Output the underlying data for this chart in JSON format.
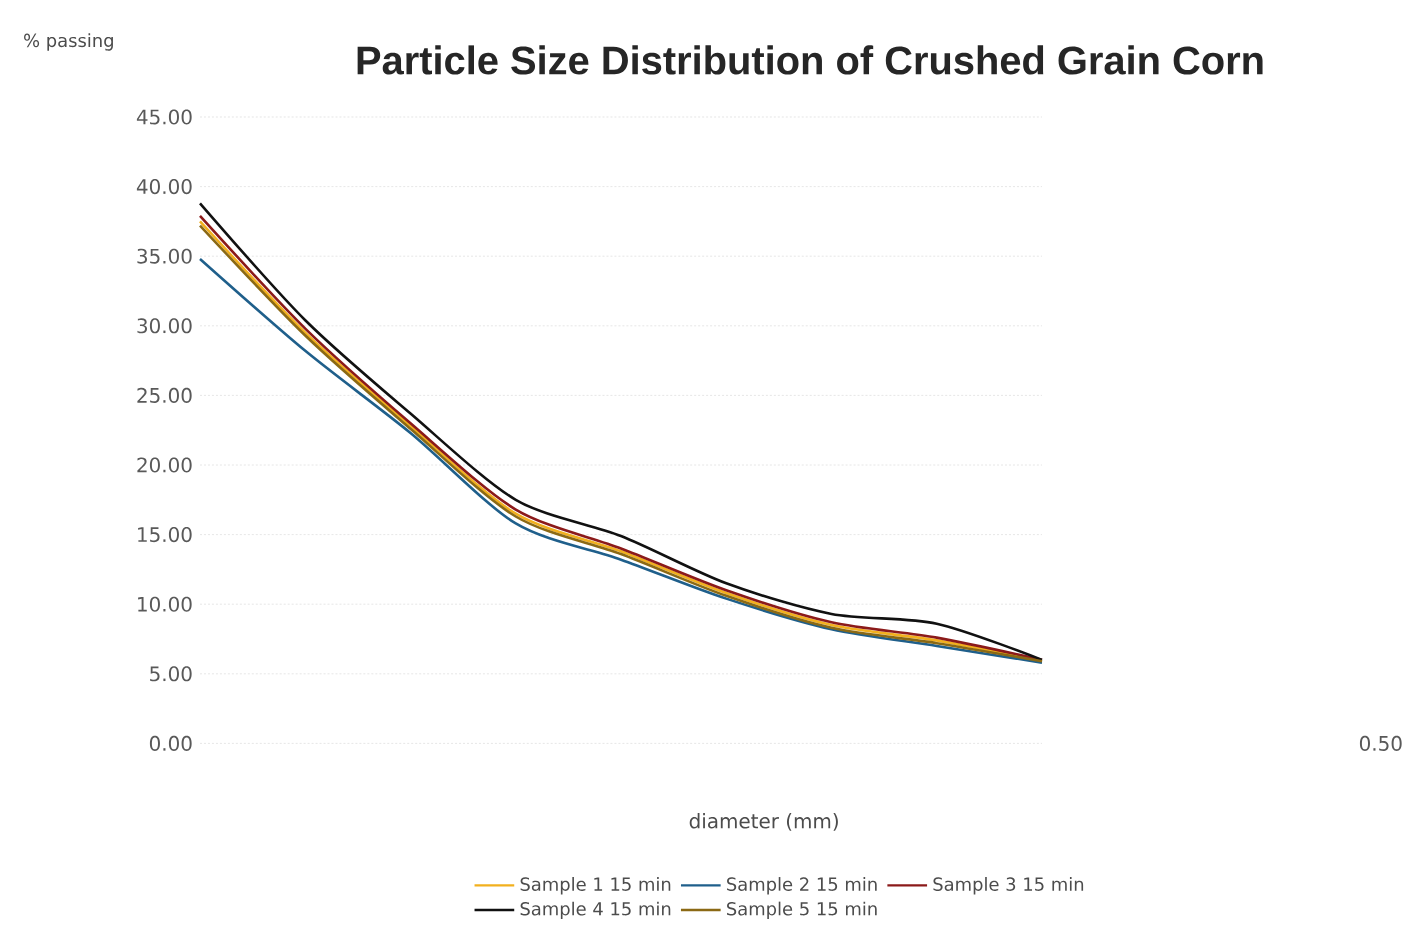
{
  "chart_data": {
    "type": "line",
    "title": "Particle Size Distribution of Crushed Grain Corn",
    "ylabel": "% passing",
    "xlabel": "diameter (mm)",
    "categories": [
      null,
      null,
      null,
      null,
      null,
      null,
      null,
      null,
      null
    ],
    "series": [
      {
        "name": "Sample 1 15 min",
        "color": "#f2b01e",
        "values": [
          37.5,
          29.5,
          22.8,
          16.5,
          13.8,
          10.8,
          8.5,
          7.4,
          5.9
        ]
      },
      {
        "name": "Sample 2 15 min",
        "color": "#1f5f8b",
        "values": [
          34.8,
          28.2,
          22.3,
          15.8,
          13.2,
          10.4,
          8.2,
          7.0,
          5.8
        ]
      },
      {
        "name": "Sample 3 15 min",
        "color": "#8b1a1a",
        "values": [
          37.9,
          29.8,
          23.0,
          16.8,
          14.0,
          11.0,
          8.7,
          7.6,
          6.0
        ]
      },
      {
        "name": "Sample 4 15 min",
        "color": "#111111",
        "values": [
          38.8,
          30.4,
          23.7,
          17.5,
          14.9,
          11.5,
          9.3,
          8.6,
          6.0
        ]
      },
      {
        "name": "Sample 5 15 min",
        "color": "#8b6914",
        "values": [
          37.2,
          29.3,
          22.6,
          16.3,
          13.6,
          10.6,
          8.3,
          7.2,
          5.9
        ]
      }
    ],
    "ylim": [
      0,
      45
    ],
    "yticks": [
      {
        "value": 0,
        "label": "0.00"
      },
      {
        "value": 5,
        "label": "5.00"
      },
      {
        "value": 10,
        "label": "10.00"
      },
      {
        "value": 15,
        "label": "15.00"
      },
      {
        "value": 20,
        "label": "20.00"
      },
      {
        "value": 25,
        "label": "25.00"
      },
      {
        "value": 30,
        "label": "30.00"
      },
      {
        "value": 35,
        "label": "35.00"
      },
      {
        "value": 40,
        "label": "40.00"
      },
      {
        "value": 45,
        "label": "45.00"
      }
    ],
    "grid": "y",
    "legend": "bottom",
    "tick_labels": "y",
    "annotations": [
      "0.50"
    ]
  }
}
